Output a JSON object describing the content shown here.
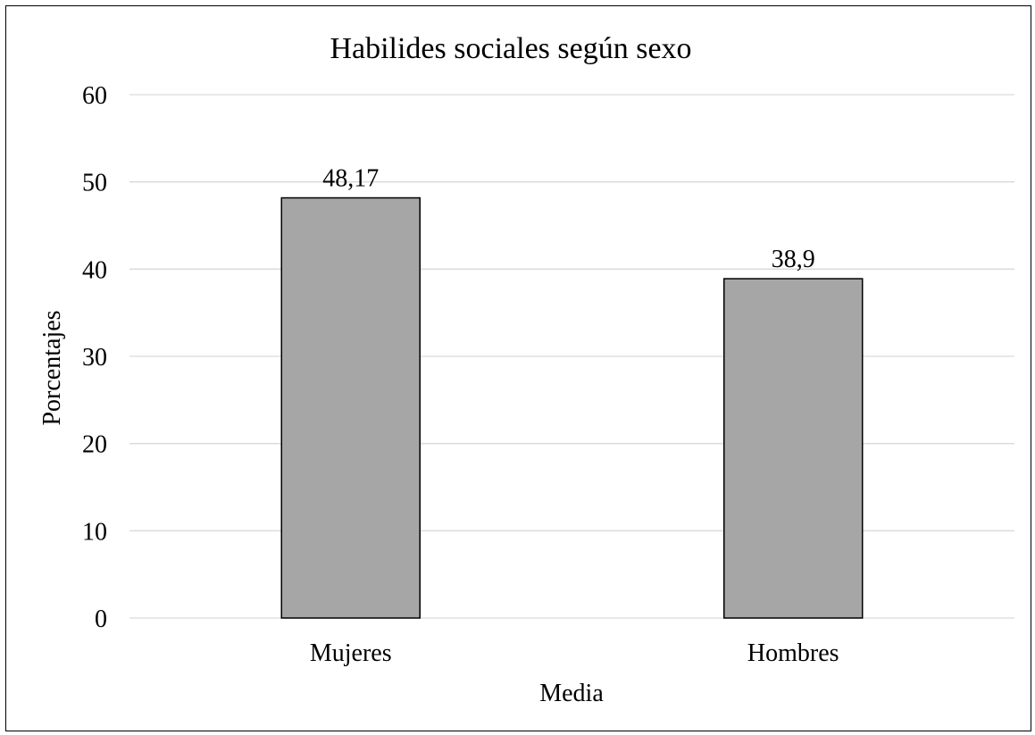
{
  "chart_data": {
    "type": "bar",
    "title": "Habilides sociales según sexo",
    "xlabel": "Media",
    "ylabel": "Porcentajes",
    "categories": [
      "Mujeres",
      "Hombres"
    ],
    "values": [
      48.17,
      38.9
    ],
    "data_labels": [
      "48,17",
      "38,9"
    ],
    "ylim": [
      0,
      60
    ],
    "yticks": [
      0,
      10,
      20,
      30,
      40,
      50,
      60
    ],
    "grid": true,
    "legend": "none",
    "colors": {
      "bar_fill": "#a6a6a6",
      "bar_stroke": "#000000",
      "grid": "#d9d9d9",
      "text": "#000000"
    }
  }
}
